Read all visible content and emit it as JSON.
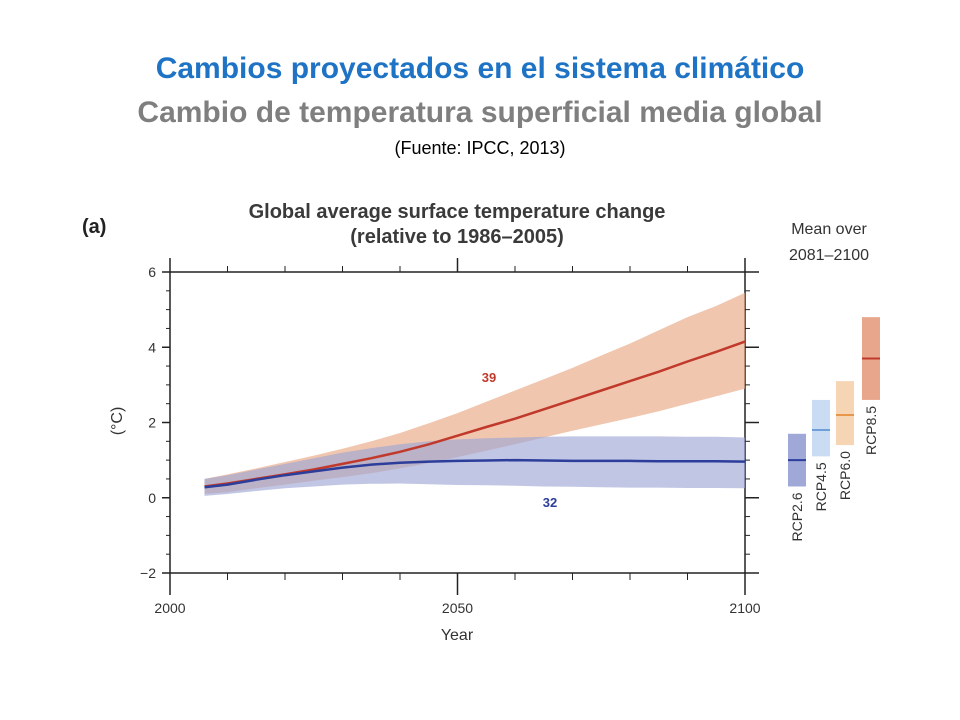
{
  "slide": {
    "title": "Cambios proyectados en el sistema climático",
    "subtitle": "Cambio de temperatura superficial media global",
    "source": "(Fuente: IPCC, 2013)",
    "title_color": "#1f73c5",
    "subtitle_color": "#7f7f7f"
  },
  "chart_data": {
    "type": "line",
    "panel_label": "(a)",
    "title_line1": "Global average surface temperature change",
    "title_line2": "(relative to 1986–2005)",
    "xlabel": "Year",
    "ylabel": "(°C)",
    "xlim": [
      2000,
      2100
    ],
    "ylim": [
      -2,
      6
    ],
    "xticks": [
      2000,
      2050,
      2100
    ],
    "yticks": [
      6,
      4,
      2,
      0,
      -2
    ],
    "ytick_labels": [
      "6",
      "4",
      "2",
      "0",
      "−2"
    ],
    "grid": false,
    "series": [
      {
        "name": "RCP8.5",
        "color": "#c0392b",
        "band_color": "#e9a784",
        "model_count": "39",
        "x": [
          2006,
          2010,
          2015,
          2020,
          2025,
          2030,
          2035,
          2040,
          2045,
          2050,
          2055,
          2060,
          2065,
          2070,
          2075,
          2080,
          2085,
          2090,
          2095,
          2100
        ],
        "mean": [
          0.3,
          0.38,
          0.5,
          0.62,
          0.75,
          0.9,
          1.05,
          1.22,
          1.42,
          1.65,
          1.88,
          2.1,
          2.35,
          2.6,
          2.85,
          3.1,
          3.35,
          3.62,
          3.88,
          4.15
        ],
        "lower": [
          0.1,
          0.15,
          0.25,
          0.35,
          0.45,
          0.55,
          0.65,
          0.78,
          0.92,
          1.08,
          1.25,
          1.42,
          1.6,
          1.78,
          1.95,
          2.12,
          2.3,
          2.5,
          2.7,
          2.9
        ],
        "upper": [
          0.5,
          0.62,
          0.78,
          0.95,
          1.12,
          1.3,
          1.5,
          1.72,
          1.98,
          2.25,
          2.55,
          2.85,
          3.15,
          3.45,
          3.78,
          4.1,
          4.45,
          4.8,
          5.1,
          5.45
        ]
      },
      {
        "name": "RCP2.6",
        "color": "#2c3e9a",
        "band_color": "#9fa8d6",
        "model_count": "32",
        "x": [
          2006,
          2010,
          2015,
          2020,
          2025,
          2030,
          2035,
          2040,
          2045,
          2050,
          2055,
          2060,
          2065,
          2070,
          2075,
          2080,
          2085,
          2090,
          2095,
          2100
        ],
        "mean": [
          0.28,
          0.35,
          0.48,
          0.6,
          0.7,
          0.8,
          0.88,
          0.93,
          0.96,
          0.98,
          0.99,
          1.0,
          0.99,
          0.98,
          0.98,
          0.98,
          0.97,
          0.97,
          0.97,
          0.96
        ],
        "lower": [
          0.05,
          0.1,
          0.18,
          0.25,
          0.3,
          0.35,
          0.37,
          0.38,
          0.36,
          0.34,
          0.33,
          0.32,
          0.3,
          0.29,
          0.28,
          0.27,
          0.27,
          0.26,
          0.26,
          0.25
        ],
        "upper": [
          0.5,
          0.6,
          0.75,
          0.9,
          1.05,
          1.2,
          1.32,
          1.42,
          1.5,
          1.55,
          1.58,
          1.6,
          1.62,
          1.63,
          1.63,
          1.63,
          1.63,
          1.62,
          1.62,
          1.6
        ]
      }
    ],
    "mean_panel": {
      "title_line1": "Mean over",
      "title_line2": "2081–2100",
      "bars": [
        {
          "name": "RCP2.6",
          "low": 0.3,
          "mean": 1.0,
          "high": 1.7,
          "fill": "#9fa8d6",
          "line": "#2c3e9a"
        },
        {
          "name": "RCP4.5",
          "low": 1.1,
          "mean": 1.8,
          "high": 2.6,
          "fill": "#c9dcf3",
          "line": "#6f9fd8"
        },
        {
          "name": "RCP6.0",
          "low": 1.4,
          "mean": 2.2,
          "high": 3.1,
          "fill": "#f6d5b5",
          "line": "#e6974a"
        },
        {
          "name": "RCP8.5",
          "low": 2.6,
          "mean": 3.7,
          "high": 4.8,
          "fill": "#e8a68c",
          "line": "#c0392b"
        }
      ]
    }
  }
}
